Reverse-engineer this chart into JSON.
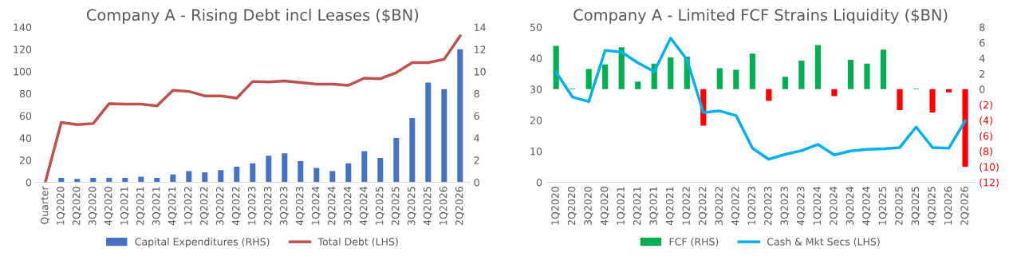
{
  "chart_data": [
    {
      "type": "bar",
      "title": "Company A - Rising Debt incl Leases ($BN)",
      "categories": [
        "Quarter",
        "1Q2020",
        "2Q2020",
        "3Q2020",
        "4Q2020",
        "1Q2021",
        "2Q2021",
        "3Q2021",
        "4Q2021",
        "1Q2022",
        "2Q2022",
        "3Q2022",
        "4Q2022",
        "1Q2023",
        "2Q2023",
        "3Q2023",
        "4Q2023",
        "1Q2024",
        "2Q2024",
        "3Q2024",
        "4Q2024",
        "1Q2025",
        "2Q2025",
        "3Q2025",
        "4Q2025",
        "1Q2026",
        "2Q2026"
      ],
      "series": [
        {
          "name": "Capital Expenditures (RHS)",
          "axis": "y2",
          "color": "#4472c4",
          "values": [
            null,
            0.4,
            0.3,
            0.4,
            0.4,
            0.4,
            0.5,
            0.4,
            0.7,
            1.0,
            0.9,
            1.1,
            1.4,
            1.7,
            2.4,
            2.6,
            1.9,
            1.3,
            1.0,
            1.7,
            2.8,
            2.2,
            4.0,
            5.8,
            9.0,
            8.4,
            12.0
          ]
        },
        {
          "name": "Total Debt (LHS)",
          "type": "line",
          "axis": "y",
          "color": "#c0504d",
          "values": [
            0,
            54,
            52,
            53,
            71,
            70.5,
            70.5,
            69,
            83,
            82,
            78,
            78,
            76,
            91,
            90.5,
            91.5,
            90,
            88.5,
            88.5,
            87.5,
            94,
            93.5,
            99,
            108,
            108,
            111,
            132
          ]
        }
      ],
      "ylim": [
        0,
        140
      ],
      "yticks": [
        0,
        20,
        40,
        60,
        80,
        100,
        120,
        140
      ],
      "y2lim": [
        0,
        14
      ],
      "y2ticks": [
        0,
        2,
        4,
        6,
        8,
        10,
        12,
        14
      ],
      "legend": "bottom",
      "grid": false
    },
    {
      "type": "bar",
      "title": "Company A - Limited FCF Strains Liquidity ($BN)",
      "categories": [
        "1Q2020",
        "2Q2020",
        "3Q2020",
        "4Q2020",
        "1Q2021",
        "2Q2021",
        "3Q2021",
        "4Q2021",
        "1Q2022",
        "2Q2022",
        "3Q2022",
        "4Q2022",
        "1Q2023",
        "2Q2023",
        "3Q2023",
        "4Q2023",
        "1Q2024",
        "2Q2024",
        "3Q2024",
        "4Q2024",
        "1Q2025",
        "2Q2025",
        "3Q2025",
        "4Q2025",
        "1Q2026",
        "2Q2026"
      ],
      "series": [
        {
          "name": "FCF (RHS)",
          "axis": "y2",
          "color": "#00b050",
          "colors": [
            "#00b050",
            "#00b050",
            "#00b050",
            "#00b050",
            "#00b050",
            "#00b050",
            "#00b050",
            "#00b050",
            "#00b050",
            "#ff0000",
            "#00b050",
            "#00b050",
            "#00b050",
            "#ff0000",
            "#00b050",
            "#00b050",
            "#00b050",
            "#ff0000",
            "#00b050",
            "#00b050",
            "#00b050",
            "#ff0000",
            "#00b050",
            "#ff0000",
            "#ff0000",
            "#ff0000"
          ],
          "values": [
            5.6,
            0.1,
            2.6,
            3.2,
            5.4,
            1.0,
            3.3,
            4.1,
            4.2,
            -4.7,
            2.7,
            2.5,
            4.6,
            -1.5,
            1.6,
            3.7,
            5.7,
            -0.9,
            3.8,
            3.3,
            5.1,
            -2.7,
            0.1,
            -3.0,
            -0.4,
            -10.0
          ]
        },
        {
          "name": "Cash & Mkt Secs (LHS)",
          "type": "line",
          "axis": "y",
          "color": "#00b0f0",
          "values": [
            35.5,
            27.5,
            26,
            42.5,
            42,
            38.5,
            35.7,
            46.5,
            39.5,
            22.5,
            23,
            21.5,
            11,
            7.4,
            9.0,
            10.2,
            12.2,
            8.8,
            10.1,
            10.6,
            10.8,
            11.2,
            17.8,
            11.2,
            11.0,
            19.8
          ]
        }
      ],
      "ylim": [
        0,
        50
      ],
      "yticks": [
        0,
        10,
        20,
        30,
        40,
        50
      ],
      "y2lim": [
        -12,
        8
      ],
      "y2ticks": [
        {
          "value": -12,
          "label": "(12)"
        },
        {
          "value": -10,
          "label": "(10)"
        },
        {
          "value": -8,
          "label": "(8)"
        },
        {
          "value": -6,
          "label": "(6)"
        },
        {
          "value": -4,
          "label": "(4)"
        },
        {
          "value": -2,
          "label": "(2)"
        },
        0,
        2,
        4,
        6,
        8
      ],
      "legend": "bottom",
      "grid": false
    }
  ]
}
